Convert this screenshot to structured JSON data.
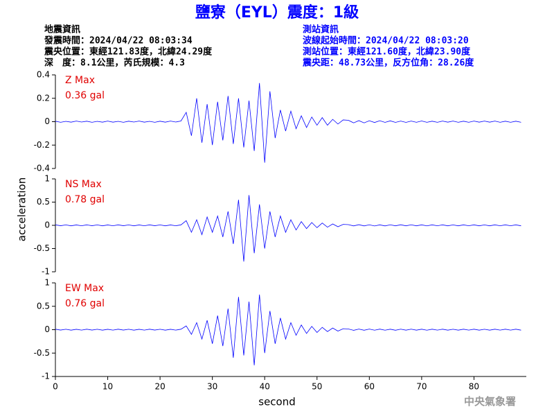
{
  "header": {
    "title": "鹽寮（EYL）震度：1級",
    "left": [
      "地震資訊",
      "發震時間：2024/04/22 08:03:34",
      "震央位置：東經121.83度，北緯24.29度",
      "深　度：8.1公里，芮氏規模：4.3"
    ],
    "right": [
      "測站資訊",
      "波線起始時間：2024/04/22 08:03:20",
      "測站位置：東經121.60度，北緯23.90度",
      "震央距：48.73公里，反方位角：28.26度"
    ]
  },
  "chart_data": {
    "type": "line",
    "xlabel": "second",
    "ylabel": "acceleration",
    "xlim": [
      0,
      90
    ],
    "xticks": [
      0,
      10,
      20,
      30,
      40,
      50,
      60,
      70,
      80
    ],
    "x": [
      0,
      1,
      2,
      3,
      4,
      5,
      6,
      7,
      8,
      9,
      10,
      11,
      12,
      13,
      14,
      15,
      16,
      17,
      18,
      19,
      20,
      21,
      22,
      23,
      24,
      25,
      26,
      27,
      28,
      29,
      30,
      31,
      32,
      33,
      34,
      35,
      36,
      37,
      38,
      39,
      40,
      41,
      42,
      43,
      44,
      45,
      46,
      47,
      48,
      49,
      50,
      51,
      52,
      53,
      54,
      55,
      56,
      57,
      58,
      59,
      60,
      61,
      62,
      63,
      64,
      65,
      66,
      67,
      68,
      69,
      70,
      71,
      72,
      73,
      74,
      75,
      76,
      77,
      78,
      79,
      80,
      81,
      82,
      83,
      84,
      85,
      86,
      87,
      88,
      89
    ],
    "series": [
      {
        "name": "Z Max",
        "annotation": "0.36 gal",
        "color": "#0000ff",
        "ylim": [
          -0.4,
          0.4
        ],
        "yticks": [
          -0.4,
          -0.2,
          0,
          0.2,
          0.4
        ],
        "values": [
          0.004,
          -0.005,
          0.003,
          -0.004,
          0.005,
          -0.003,
          0.004,
          -0.005,
          0.003,
          -0.004,
          0.005,
          -0.004,
          0.003,
          -0.005,
          0.004,
          -0.003,
          0.005,
          -0.004,
          0.003,
          -0.005,
          0.004,
          -0.004,
          0.005,
          -0.003,
          0.006,
          0.08,
          -0.12,
          0.2,
          -0.18,
          0.15,
          -0.2,
          0.17,
          -0.16,
          0.22,
          -0.19,
          0.2,
          -0.22,
          0.18,
          -0.25,
          0.33,
          -0.35,
          0.26,
          -0.14,
          0.1,
          -0.08,
          0.09,
          -0.06,
          0.05,
          -0.05,
          0.04,
          -0.03,
          0.035,
          -0.03,
          0.02,
          -0.02,
          0.015,
          0.012,
          -0.01,
          0.009,
          -0.01,
          0.008,
          -0.007,
          0.008,
          -0.006,
          0.007,
          -0.006,
          0.005,
          -0.006,
          0.005,
          -0.005,
          0.006,
          -0.005,
          0.004,
          -0.005,
          0.005,
          -0.004,
          0.005,
          -0.005,
          0.004,
          -0.005,
          0.005,
          -0.004,
          0.005,
          -0.004,
          0.005,
          -0.005,
          0.004,
          -0.005,
          0.004,
          -0.005
        ]
      },
      {
        "name": "NS Max",
        "annotation": "0.78 gal",
        "color": "#0000ff",
        "ylim": [
          -1,
          1
        ],
        "yticks": [
          -1,
          -0.5,
          0,
          0.5,
          1
        ],
        "values": [
          0.01,
          -0.008,
          0.009,
          -0.01,
          0.008,
          -0.009,
          0.01,
          -0.008,
          0.009,
          -0.01,
          0.008,
          -0.009,
          0.01,
          -0.008,
          0.009,
          -0.01,
          0.008,
          -0.009,
          0.01,
          -0.008,
          0.009,
          -0.01,
          0.008,
          -0.009,
          0.01,
          0.1,
          -0.15,
          0.12,
          -0.2,
          0.18,
          -0.15,
          0.2,
          -0.25,
          0.3,
          -0.4,
          0.55,
          -0.78,
          0.65,
          -0.6,
          0.45,
          -0.5,
          0.3,
          -0.25,
          0.2,
          -0.15,
          0.12,
          -0.1,
          0.08,
          -0.07,
          0.06,
          -0.05,
          0.05,
          -0.04,
          0.03,
          -0.03,
          0.02,
          0.015,
          -0.012,
          0.014,
          -0.012,
          0.011,
          -0.013,
          0.01,
          -0.012,
          0.011,
          -0.01,
          0.012,
          -0.01,
          0.011,
          -0.01,
          0.01,
          -0.011,
          0.01,
          -0.009,
          0.01,
          -0.01,
          0.009,
          -0.01,
          0.01,
          -0.009,
          0.01,
          -0.01,
          0.009,
          -0.01,
          0.01,
          -0.009,
          0.01,
          -0.009,
          0.01,
          -0.01
        ]
      },
      {
        "name": "EW Max",
        "annotation": "0.76 gal",
        "color": "#0000ff",
        "ylim": [
          -1,
          1
        ],
        "yticks": [
          -1,
          -0.5,
          0,
          0.5,
          1
        ],
        "values": [
          0.01,
          -0.008,
          0.009,
          -0.01,
          0.008,
          -0.009,
          0.01,
          -0.008,
          0.009,
          -0.01,
          0.008,
          -0.009,
          0.01,
          -0.008,
          0.009,
          -0.01,
          0.008,
          -0.009,
          0.01,
          -0.008,
          0.009,
          -0.01,
          0.008,
          -0.009,
          0.01,
          0.08,
          -0.1,
          0.15,
          -0.2,
          0.2,
          -0.3,
          0.3,
          -0.35,
          0.45,
          -0.6,
          0.7,
          -0.55,
          0.6,
          -0.76,
          0.75,
          -0.5,
          0.4,
          -0.3,
          0.25,
          -0.2,
          0.15,
          -0.12,
          0.1,
          -0.08,
          0.07,
          -0.06,
          0.05,
          -0.04,
          0.035,
          -0.03,
          0.02,
          0.015,
          -0.014,
          0.013,
          -0.012,
          0.013,
          -0.011,
          0.012,
          -0.011,
          0.01,
          -0.012,
          0.011,
          -0.01,
          0.011,
          -0.01,
          0.01,
          -0.011,
          0.01,
          -0.009,
          0.01,
          -0.01,
          0.009,
          -0.01,
          0.01,
          -0.009,
          0.01,
          -0.01,
          0.009,
          -0.01,
          0.01,
          -0.009,
          0.01,
          -0.009,
          0.01,
          -0.01
        ]
      }
    ]
  },
  "footer": "中央氣象署"
}
